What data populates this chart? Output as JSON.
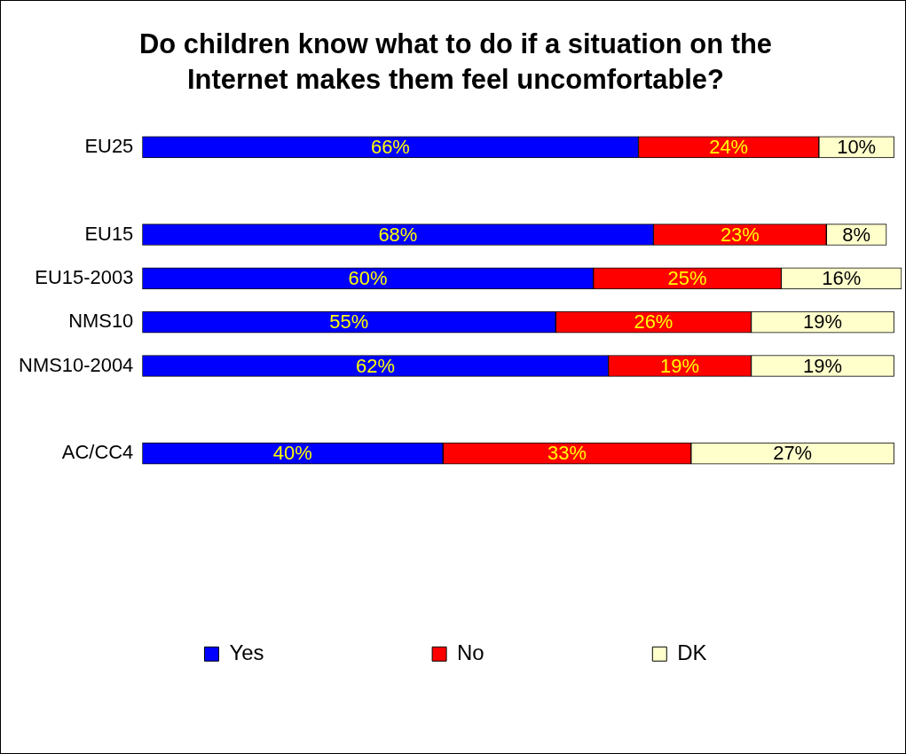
{
  "chart_data": {
    "type": "bar",
    "orientation": "horizontal",
    "stacked": true,
    "title": "Do children know what to do if a situation on the Internet makes them feel uncomfortable?",
    "categories": [
      "EU25",
      null,
      "EU15",
      "EU15-2003",
      "NMS10",
      "NMS10-2004",
      null,
      "AC/CC4"
    ],
    "series": [
      {
        "name": "Yes",
        "color": "#0000ff",
        "values": [
          66,
          null,
          68,
          60,
          55,
          62,
          null,
          40
        ],
        "value_labels": [
          "66%",
          null,
          "68%",
          "60%",
          "55%",
          "62%",
          null,
          "40%"
        ]
      },
      {
        "name": "No",
        "color": "#ff0000",
        "values": [
          24,
          null,
          23,
          25,
          26,
          19,
          null,
          33
        ],
        "value_labels": [
          "24%",
          null,
          "23%",
          "25%",
          "26%",
          "19%",
          null,
          "33%"
        ]
      },
      {
        "name": "DK",
        "color": "#ffffcc",
        "values": [
          10,
          null,
          8,
          16,
          19,
          19,
          null,
          27
        ],
        "value_labels": [
          "10%",
          null,
          "8%",
          "16%",
          "19%",
          "19%",
          null,
          "27%"
        ]
      }
    ],
    "tick_labels": "y",
    "legend": "bottom"
  }
}
